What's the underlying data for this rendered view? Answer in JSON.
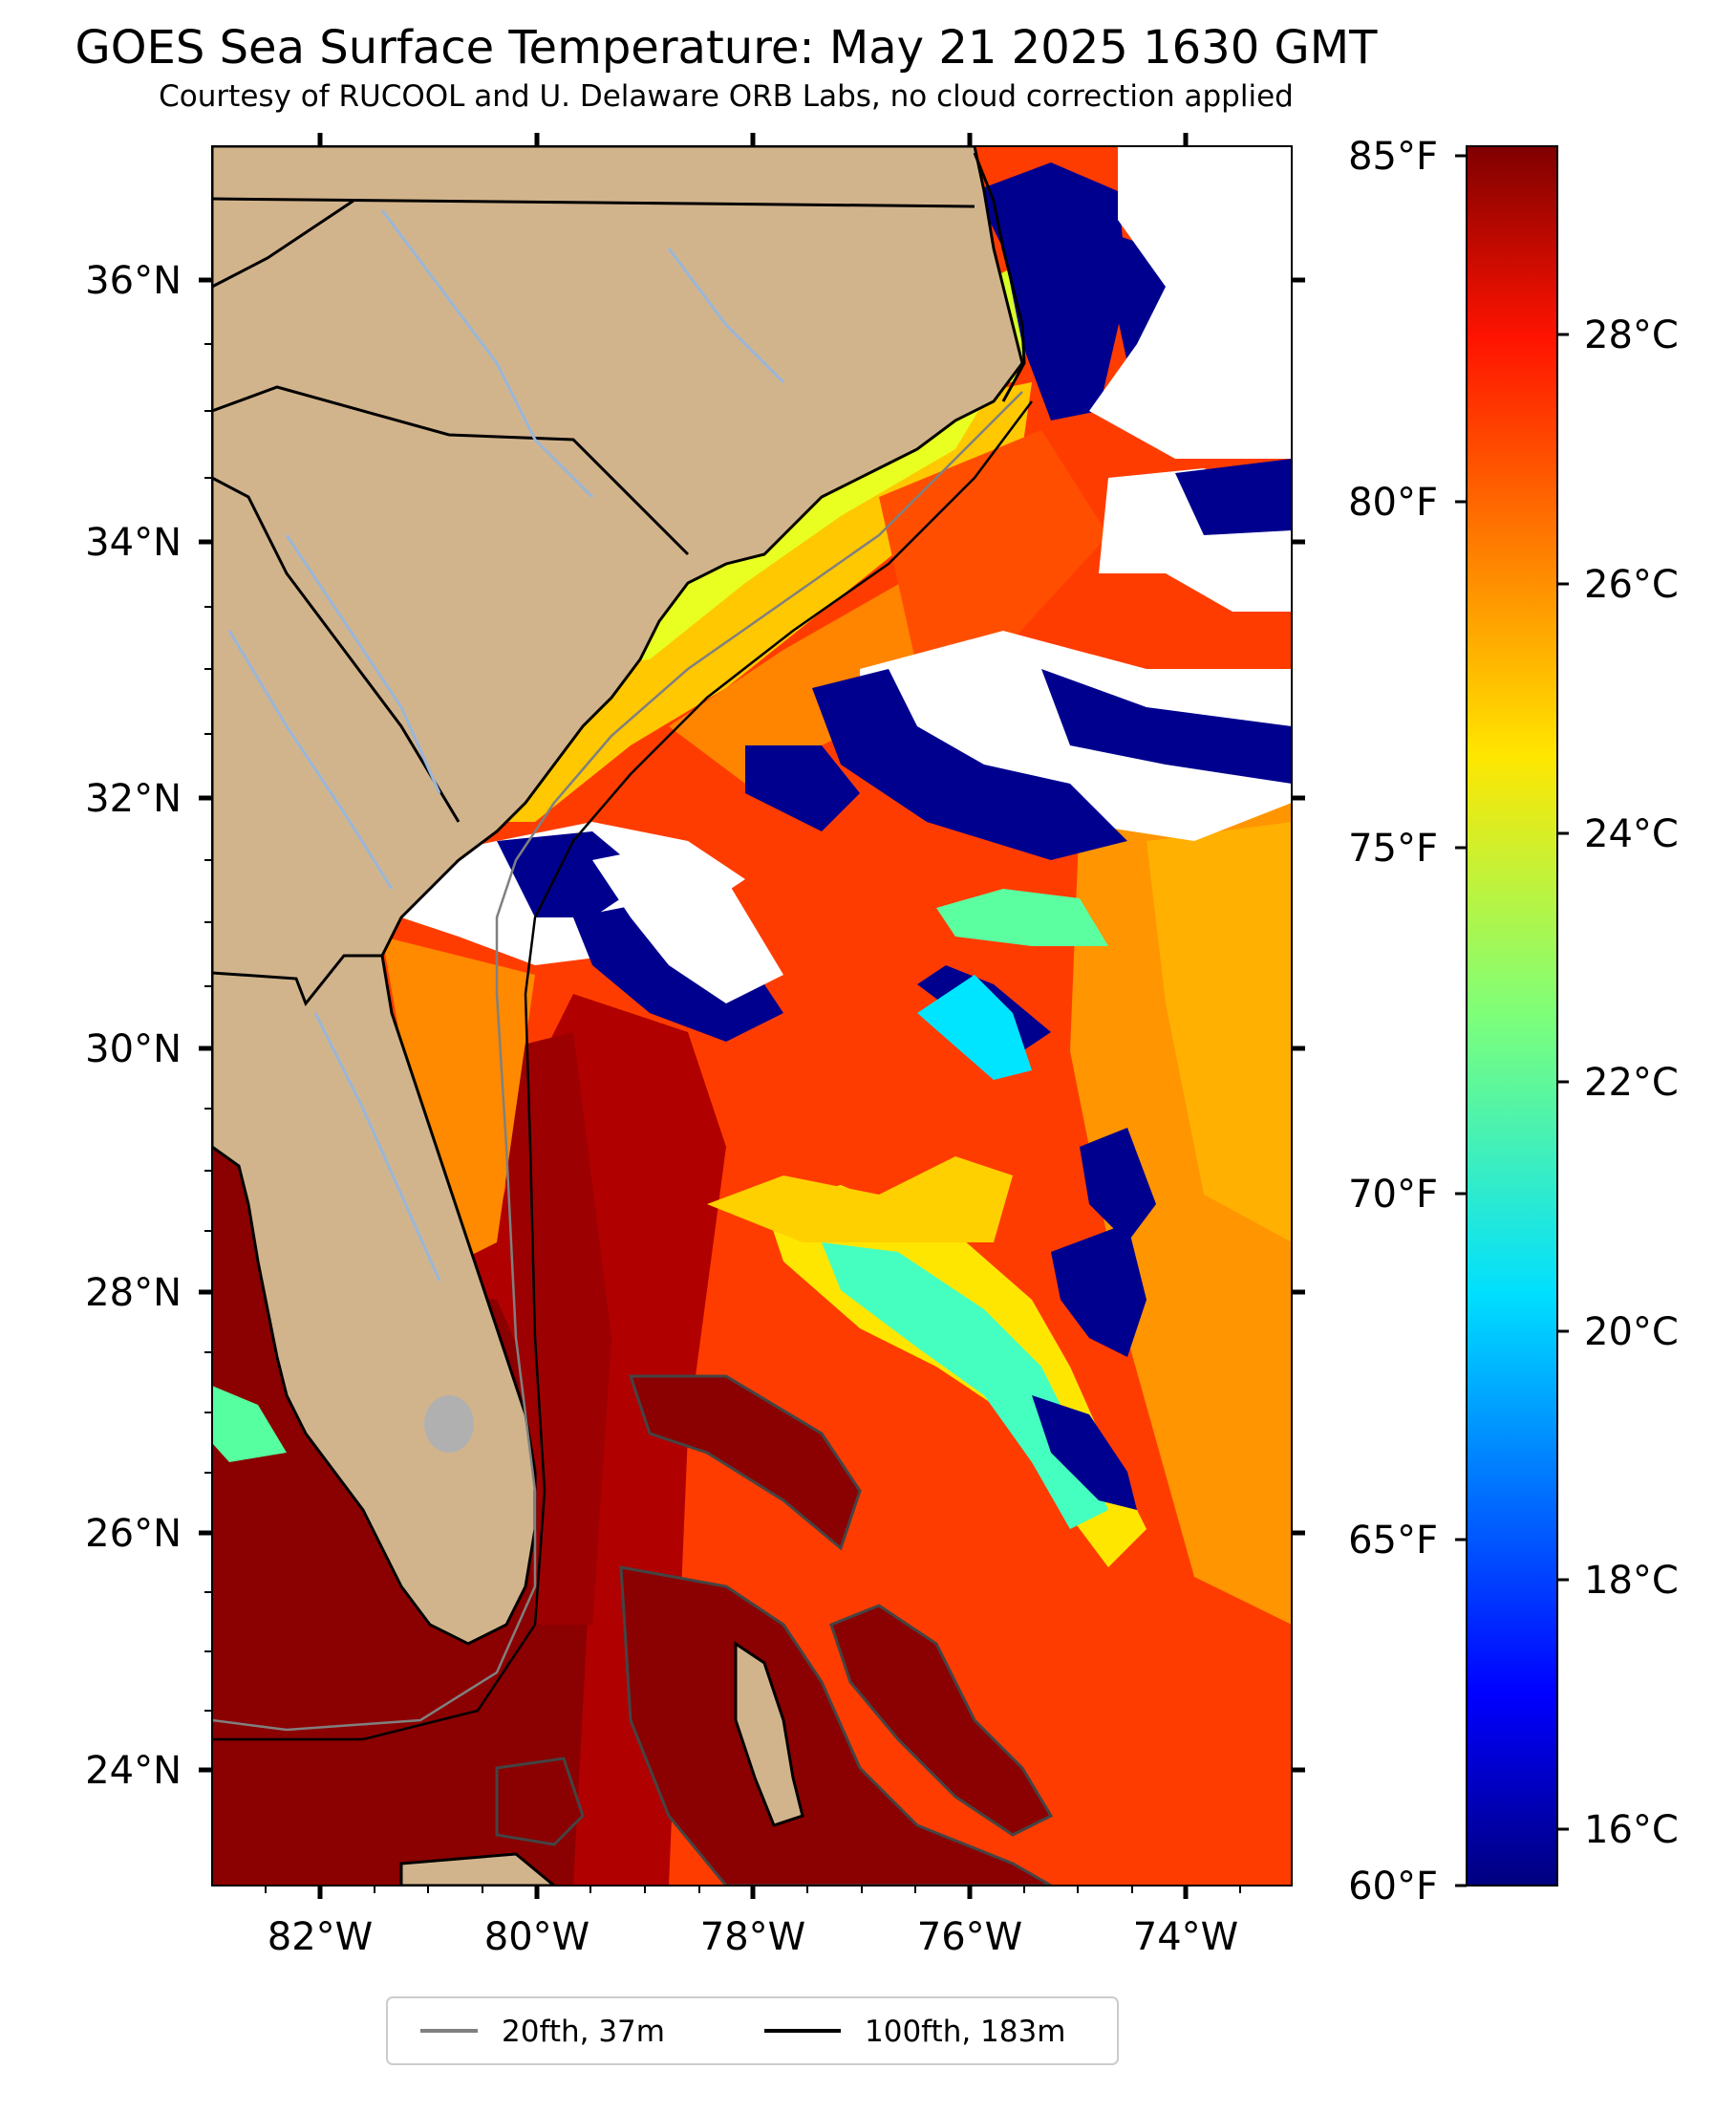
{
  "title": "GOES Sea Surface Temperature: May 21 2025 1630 GMT",
  "subtitle": "Courtesy of RUCOOL and U. Delaware ORB Labs, no cloud correction applied",
  "map": {
    "lon_range": [
      -83,
      -73
    ],
    "lat_range": [
      23,
      37
    ],
    "lon_ticks": [
      "82°W",
      "80°W",
      "78°W",
      "76°W",
      "74°W"
    ],
    "lat_ticks": [
      "36°N",
      "34°N",
      "32°N",
      "30°N",
      "28°N",
      "26°N",
      "24°N"
    ],
    "colors": {
      "land": "#d2b48c",
      "cloud": "#ffffff",
      "warm": "#ff3c00",
      "hot": "#8b0000",
      "cold": "#00008f",
      "river": "#9ab6d9"
    }
  },
  "colorbar": {
    "fahrenheit_ticks": [
      "85°F",
      "80°F",
      "75°F",
      "70°F",
      "65°F",
      "60°F"
    ],
    "celsius_ticks": [
      "28°C",
      "26°C",
      "24°C",
      "22°C",
      "20°C",
      "18°C",
      "16°C"
    ],
    "colormap": "jet"
  },
  "legend": {
    "items": [
      {
        "label": "20fth, 37m",
        "color": "#808080"
      },
      {
        "label": "100fth, 183m",
        "color": "#000000"
      }
    ],
    "placement": "bottom-center"
  }
}
